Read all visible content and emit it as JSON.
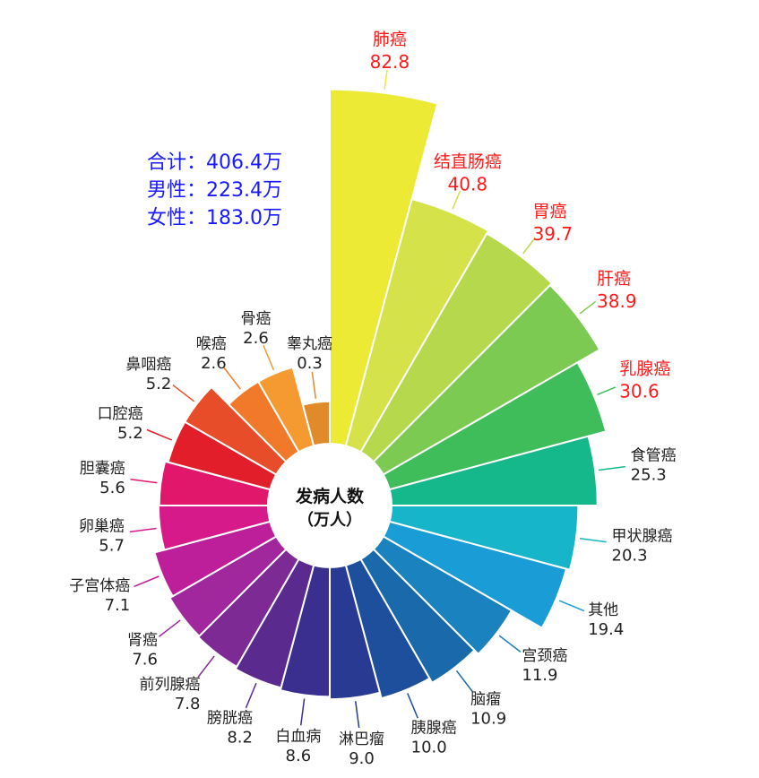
{
  "summary": {
    "total": "合计：406.4万",
    "male": "男性：223.4万",
    "female": "女性：183.0万",
    "color": "#1a1aff"
  },
  "center": {
    "line1": "发病人数",
    "line2": "（万人）"
  },
  "highlight_color": "#ff1a1a",
  "chart_data": {
    "type": "nightingale-rose",
    "title": "",
    "unit": "万人",
    "series": [
      {
        "name": "肺癌",
        "value": 82.8,
        "color": "#ecea34",
        "highlight": true
      },
      {
        "name": "结直肠癌",
        "value": 40.8,
        "color": "#d5e24a",
        "highlight": true
      },
      {
        "name": "胃癌",
        "value": 39.7,
        "color": "#b6d84c",
        "highlight": true
      },
      {
        "name": "肝癌",
        "value": 38.9,
        "color": "#7dca53",
        "highlight": true
      },
      {
        "name": "乳腺癌",
        "value": 30.6,
        "color": "#3fbd5a",
        "highlight": true
      },
      {
        "name": "食管癌",
        "value": 25.3,
        "color": "#15b88a",
        "highlight": false
      },
      {
        "name": "甲状腺癌",
        "value": 20.3,
        "color": "#17b5c9",
        "highlight": false
      },
      {
        "name": "其他",
        "value": 19.4,
        "color": "#1a9cd6",
        "highlight": false
      },
      {
        "name": "宫颈癌",
        "value": 11.9,
        "color": "#1b82c0",
        "highlight": false
      },
      {
        "name": "脑瘤",
        "value": 10.9,
        "color": "#1a6aab",
        "highlight": false
      },
      {
        "name": "胰腺癌",
        "value": 10.0,
        "color": "#1d4f9c",
        "highlight": false
      },
      {
        "name": "淋巴瘤",
        "value": 9.0,
        "color": "#283a91",
        "highlight": false
      },
      {
        "name": "白血病",
        "value": 8.6,
        "color": "#3a2f8e",
        "highlight": false
      },
      {
        "name": "膀胱癌",
        "value": 8.2,
        "color": "#5a2a8e",
        "highlight": false
      },
      {
        "name": "前列腺癌",
        "value": 7.8,
        "color": "#7e2a94",
        "highlight": false
      },
      {
        "name": "肾癌",
        "value": 7.6,
        "color": "#a0279c",
        "highlight": false
      },
      {
        "name": "子宫体癌",
        "value": 7.1,
        "color": "#bd1f9a",
        "highlight": false
      },
      {
        "name": "卵巢癌",
        "value": 5.7,
        "color": "#d61a8a",
        "highlight": false
      },
      {
        "name": "胆囊癌",
        "value": 5.6,
        "color": "#e0176b",
        "highlight": false
      },
      {
        "name": "口腔癌",
        "value": 5.2,
        "color": "#e21e2a",
        "highlight": false
      },
      {
        "name": "鼻咽癌",
        "value": 5.2,
        "color": "#e84d2a",
        "highlight": false
      },
      {
        "name": "喉癌",
        "value": 2.6,
        "color": "#f07a2a",
        "highlight": false
      },
      {
        "name": "骨癌",
        "value": 2.6,
        "color": "#f49a30",
        "highlight": false
      },
      {
        "name": "睾丸癌",
        "value": 0.3,
        "color": "#e08a2a",
        "highlight": false
      }
    ]
  }
}
